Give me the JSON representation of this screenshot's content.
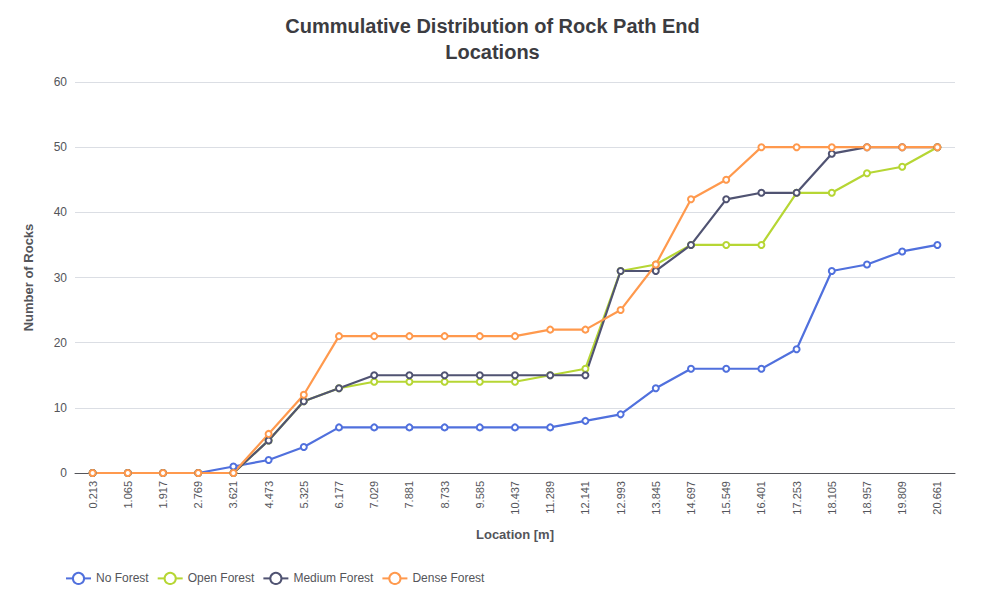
{
  "chart_data": {
    "type": "line",
    "title": "Cummulative Distribution of Rock Path End\nLocations",
    "x_label": "Location [m]",
    "y_label": "Number of Rocks",
    "categories": [
      "0.213",
      "1.065",
      "1.917",
      "2.769",
      "3.621",
      "4.473",
      "5.325",
      "6.177",
      "7.029",
      "7.881",
      "8.733",
      "9.585",
      "10.437",
      "11.289",
      "12.141",
      "12.993",
      "13.845",
      "14.697",
      "15.549",
      "16.401",
      "17.253",
      "18.105",
      "18.957",
      "19.809",
      "20.661"
    ],
    "series": [
      {
        "name": "No Forest",
        "values": [
          0,
          0,
          0,
          0,
          1,
          2,
          4,
          7,
          7,
          7,
          7,
          7,
          7,
          7,
          8,
          9,
          13,
          16,
          16,
          16,
          19,
          31,
          32,
          34,
          35
        ]
      },
      {
        "name": "Open Forest",
        "values": [
          0,
          0,
          0,
          0,
          0,
          5,
          11,
          13,
          14,
          14,
          14,
          14,
          14,
          15,
          16,
          31,
          32,
          35,
          35,
          35,
          43,
          43,
          46,
          47,
          50
        ]
      },
      {
        "name": "Medium Forest",
        "values": [
          0,
          0,
          0,
          0,
          0,
          5,
          11,
          13,
          15,
          15,
          15,
          15,
          15,
          15,
          15,
          31,
          31,
          35,
          42,
          43,
          43,
          49,
          50,
          50,
          50
        ]
      },
      {
        "name": "Dense Forest",
        "values": [
          0,
          0,
          0,
          0,
          0,
          6,
          12,
          21,
          21,
          21,
          21,
          21,
          21,
          22,
          22,
          25,
          32,
          42,
          45,
          50,
          50,
          50,
          50,
          50,
          50
        ]
      }
    ],
    "ylim": [
      0,
      60
    ],
    "yticks": [
      0,
      10,
      20,
      30,
      40,
      50,
      60
    ],
    "grid": true,
    "legend": "bottom"
  }
}
